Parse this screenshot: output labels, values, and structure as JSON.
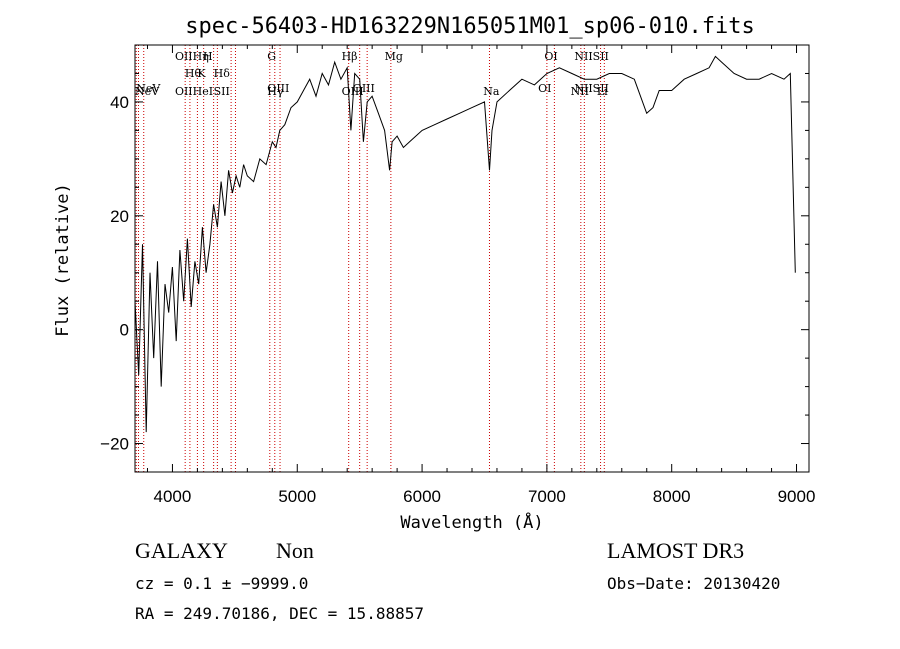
{
  "chart_data": {
    "type": "line",
    "title": "spec-56403-HD163229N165051M01_sp06-010.fits",
    "xlabel": "Wavelength (Å)",
    "ylabel": "Flux (relative)",
    "xlim": [
      3700,
      9100
    ],
    "ylim": [
      -25,
      50
    ],
    "x_ticks": [
      4000,
      5000,
      6000,
      7000,
      8000,
      9000
    ],
    "y_ticks": [
      -20,
      0,
      20,
      40
    ],
    "x_tick_labels": [
      "4000",
      "5000",
      "6000",
      "7000",
      "8000",
      "9000"
    ],
    "y_tick_labels": [
      "−20",
      "0",
      "20",
      "40"
    ],
    "series": [
      {
        "name": "flux",
        "color": "#000000",
        "x": [
          3700,
          3730,
          3760,
          3790,
          3820,
          3850,
          3880,
          3910,
          3940,
          3970,
          4000,
          4030,
          4060,
          4090,
          4120,
          4150,
          4180,
          4210,
          4240,
          4270,
          4300,
          4330,
          4360,
          4390,
          4420,
          4450,
          4480,
          4510,
          4540,
          4570,
          4600,
          4650,
          4700,
          4750,
          4800,
          4830,
          4860,
          4900,
          4950,
          5000,
          5050,
          5100,
          5150,
          5200,
          5250,
          5300,
          5350,
          5400,
          5430,
          5460,
          5500,
          5530,
          5560,
          5600,
          5650,
          5700,
          5740,
          5760,
          5800,
          5850,
          5900,
          5950,
          6000,
          6100,
          6200,
          6300,
          6400,
          6500,
          6540,
          6560,
          6600,
          6700,
          6800,
          6900,
          7000,
          7100,
          7200,
          7300,
          7400,
          7500,
          7600,
          7700,
          7800,
          7850,
          7900,
          8000,
          8100,
          8200,
          8300,
          8350,
          8400,
          8500,
          8600,
          8700,
          8800,
          8900,
          8950,
          8990
        ],
        "values": [
          5,
          -8,
          15,
          -18,
          10,
          -5,
          12,
          -10,
          8,
          3,
          11,
          -2,
          14,
          5,
          16,
          4,
          12,
          8,
          18,
          10,
          15,
          22,
          18,
          26,
          20,
          28,
          24,
          27,
          25,
          29,
          27,
          26,
          30,
          29,
          33,
          32,
          35,
          36,
          39,
          40,
          42,
          44,
          41,
          45,
          43,
          47,
          44,
          46,
          35,
          45,
          44,
          33,
          40,
          41,
          38,
          35,
          28,
          33,
          34,
          32,
          33,
          34,
          35,
          36,
          37,
          38,
          39,
          40,
          28,
          35,
          40,
          42,
          44,
          43,
          45,
          46,
          45,
          44,
          44,
          45,
          45,
          44,
          38,
          39,
          42,
          42,
          44,
          45,
          46,
          48,
          47,
          45,
          44,
          44,
          45,
          44,
          45,
          10
        ]
      }
    ],
    "spectral_lines": [
      {
        "x": 3710,
        "label": ""
      },
      {
        "x": 3728,
        "label": "NeV"
      },
      {
        "x": 3770,
        "label": "NeV"
      },
      {
        "x": 4102,
        "label": "OII"
      },
      {
        "x": 4140,
        "label": "Hθ"
      },
      {
        "x": 4200,
        "label": "OIIHη"
      },
      {
        "x": 4250,
        "label": "HeI"
      },
      {
        "x": 4330,
        "label": "K"
      },
      {
        "x": 4360,
        "label": "H"
      },
      {
        "x": 4470,
        "label": "Hδ"
      },
      {
        "x": 4505,
        "label": "SII"
      },
      {
        "x": 4780,
        "label": "G"
      },
      {
        "x": 4820,
        "label": "OIII"
      },
      {
        "x": 4862,
        "label": "Hγ"
      },
      {
        "x": 5412,
        "label": "Hβ"
      },
      {
        "x": 5500,
        "label": "OIII"
      },
      {
        "x": 5560,
        "label": "OIII"
      },
      {
        "x": 5750,
        "label": "Mg"
      },
      {
        "x": 6540,
        "label": "Na"
      },
      {
        "x": 7000,
        "label": "OI"
      },
      {
        "x": 7060,
        "label": "OI"
      },
      {
        "x": 7272,
        "label": "NII"
      },
      {
        "x": 7300,
        "label": "NII"
      },
      {
        "x": 7430,
        "label": "SII"
      },
      {
        "x": 7460,
        "label": "Li"
      }
    ],
    "line_labels_top": [
      {
        "text": "NeV",
        "x": 3710,
        "row": 2
      },
      {
        "text": "NeV",
        "x": 3700,
        "row": 3
      },
      {
        "text": "OIIHη",
        "x": 4020,
        "row": 0
      },
      {
        "text": "H",
        "x": 4245,
        "row": 0
      },
      {
        "text": "Hθ",
        "x": 4100,
        "row": 1
      },
      {
        "text": "K",
        "x": 4200,
        "row": 1
      },
      {
        "text": "Hδ",
        "x": 4330,
        "row": 1
      },
      {
        "text": "OIIHeI",
        "x": 4020,
        "row": 3
      },
      {
        "text": "SII",
        "x": 4330,
        "row": 3
      },
      {
        "text": "G",
        "x": 4760,
        "row": 0
      },
      {
        "text": "OIII",
        "x": 4760,
        "row": 2
      },
      {
        "text": "Hγ",
        "x": 4760,
        "row": 3
      },
      {
        "text": "Hβ",
        "x": 5355,
        "row": 0
      },
      {
        "text": "OIII",
        "x": 5445,
        "row": 2
      },
      {
        "text": "OIII",
        "x": 5355,
        "row": 3
      },
      {
        "text": "Mg",
        "x": 5700,
        "row": 0
      },
      {
        "text": "Na",
        "x": 6490,
        "row": 3
      },
      {
        "text": "OI",
        "x": 6980,
        "row": 0
      },
      {
        "text": "OI",
        "x": 6930,
        "row": 2
      },
      {
        "text": "NIISII",
        "x": 7220,
        "row": 0
      },
      {
        "text": "NIISII",
        "x": 7220,
        "row": 2
      },
      {
        "text": "NII",
        "x": 7190,
        "row": 3
      },
      {
        "text": "Li",
        "x": 7400,
        "row": 3
      }
    ]
  },
  "info": {
    "object_class": "GALAXY",
    "subclass": "Non",
    "survey": "LAMOST DR3",
    "cz_line": "cz = 0.1 ± −9999.0",
    "obs_date_line": "Obs−Date: 20130420",
    "radec_line": "RA = 249.70186, DEC =  15.88857"
  },
  "colors": {
    "spectrum": "#000000",
    "lines": "#cc0000",
    "background": "#ffffff"
  }
}
